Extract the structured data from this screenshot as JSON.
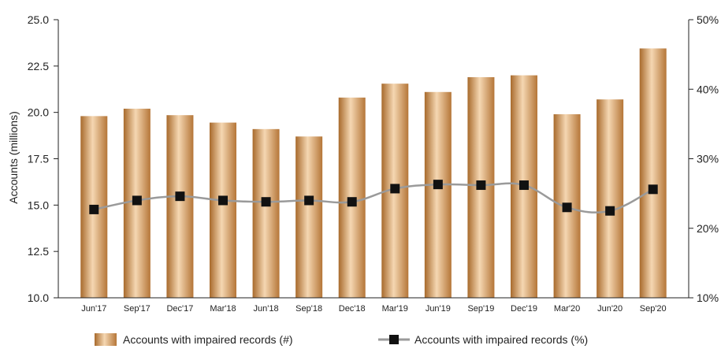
{
  "chart_data": {
    "type": "bar",
    "categories": [
      "Jun'17",
      "Sep'17",
      "Dec'17",
      "Mar'18",
      "Jun'18",
      "Sep'18",
      "Dec'18",
      "Mar'19",
      "Jun'19",
      "Sep'19",
      "Dec'19",
      "Mar'20",
      "Jun'20",
      "Sep'20"
    ],
    "series": [
      {
        "name": "Accounts with impaired records (#)",
        "type": "bar",
        "axis": "left",
        "values": [
          19.8,
          20.2,
          19.85,
          19.45,
          19.1,
          18.7,
          20.8,
          21.55,
          21.1,
          21.9,
          22.0,
          19.9,
          20.7,
          23.45
        ]
      },
      {
        "name": "Accounts with impaired records (%)",
        "type": "line",
        "axis": "right",
        "values": [
          22.7,
          24.0,
          24.6,
          24.0,
          23.8,
          24.0,
          23.8,
          25.7,
          26.3,
          26.2,
          26.2,
          23.0,
          22.5,
          25.6
        ]
      }
    ],
    "ylabel": "Accounts (millions)",
    "ylim": [
      10.0,
      25.0
    ],
    "yticks": [
      "25.0",
      "22.5",
      "20.0",
      "17.5",
      "15.0",
      "12.5",
      "10.0"
    ],
    "y2lim": [
      10,
      50
    ],
    "y2ticks": [
      "50%",
      "40%",
      "30%",
      "20%",
      "10%"
    ],
    "grid": false,
    "legend": "bottom",
    "colors": {
      "bar_dark": "#a86a2c",
      "bar_light": "#f5d7b2",
      "line": "#9a9a9a",
      "marker": "#111111"
    }
  }
}
